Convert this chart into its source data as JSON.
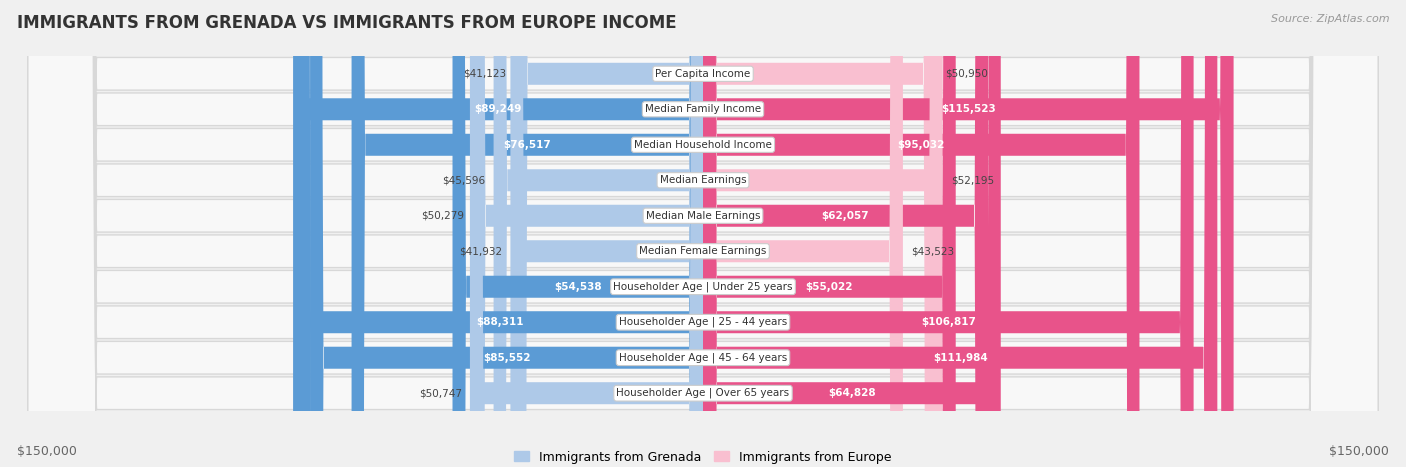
{
  "title": "IMMIGRANTS FROM GRENADA VS IMMIGRANTS FROM EUROPE INCOME",
  "source": "Source: ZipAtlas.com",
  "categories": [
    "Per Capita Income",
    "Median Family Income",
    "Median Household Income",
    "Median Earnings",
    "Median Male Earnings",
    "Median Female Earnings",
    "Householder Age | Under 25 years",
    "Householder Age | 25 - 44 years",
    "Householder Age | 45 - 64 years",
    "Householder Age | Over 65 years"
  ],
  "grenada_values": [
    41123,
    89249,
    76517,
    45596,
    50279,
    41932,
    54538,
    88311,
    85552,
    50747
  ],
  "europe_values": [
    50950,
    115523,
    95032,
    52195,
    62057,
    43523,
    55022,
    106817,
    111984,
    64828
  ],
  "grenada_labels": [
    "$41,123",
    "$89,249",
    "$76,517",
    "$45,596",
    "$50,279",
    "$41,932",
    "$54,538",
    "$88,311",
    "$85,552",
    "$50,747"
  ],
  "europe_labels": [
    "$50,950",
    "$115,523",
    "$95,032",
    "$52,195",
    "$62,057",
    "$43,523",
    "$55,022",
    "$106,817",
    "$111,984",
    "$64,828"
  ],
  "max_val": 150000,
  "grenada_color_light": "#aec9e8",
  "grenada_color_dark": "#5b9bd5",
  "europe_color_light": "#f9bfd0",
  "europe_color_dark": "#e8538a",
  "background_color": "#f0f0f0",
  "row_color": "#f5f5f5",
  "bar_height": 0.62,
  "legend_grenada": "Immigrants from Grenada",
  "legend_europe": "Immigrants from Europe",
  "axis_label_left": "$150,000",
  "axis_label_right": "$150,000",
  "label_threshold": 0.35
}
